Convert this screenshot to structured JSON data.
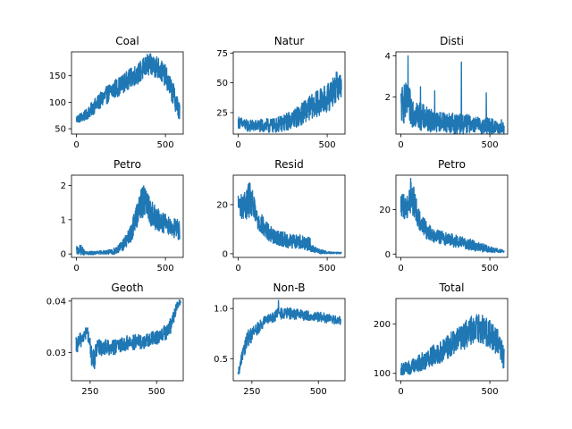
{
  "chart_data": [
    {
      "type": "line",
      "title": "Coal",
      "xlim": [
        -28,
        600
      ],
      "ylim": [
        40,
        195
      ],
      "xticks": [
        0,
        500
      ],
      "yticks": [
        50,
        100,
        150
      ],
      "series": [
        {
          "color": "#1f77b4",
          "x": [
            0,
            50,
            100,
            150,
            200,
            250,
            300,
            350,
            400,
            450,
            500,
            550,
            580
          ],
          "y": [
            68,
            75,
            92,
            108,
            122,
            132,
            145,
            155,
            170,
            168,
            150,
            110,
            80
          ],
          "noise": [
            8,
            10,
            14,
            16,
            18,
            18,
            18,
            20,
            22,
            22,
            20,
            22,
            18
          ]
        }
      ]
    },
    {
      "type": "line",
      "title": "Natur",
      "xlim": [
        -28,
        600
      ],
      "ylim": [
        7,
        76
      ],
      "xticks": [
        0,
        500
      ],
      "yticks": [
        25,
        50,
        75
      ],
      "series": [
        {
          "color": "#1f77b4",
          "x": [
            0,
            50,
            100,
            150,
            200,
            250,
            300,
            350,
            400,
            450,
            500,
            550,
            580
          ],
          "y": [
            17,
            14,
            14,
            14,
            14,
            16,
            19,
            23,
            29,
            33,
            37,
            46,
            50
          ],
          "noise": [
            5,
            5,
            5,
            6,
            6,
            7,
            8,
            9,
            10,
            11,
            12,
            13,
            14
          ]
        }
      ]
    },
    {
      "type": "line",
      "title": "Disti",
      "xlim": [
        -28,
        600
      ],
      "ylim": [
        0.2,
        4.2
      ],
      "xticks": [
        0,
        500
      ],
      "yticks": [
        2,
        4
      ],
      "series": [
        {
          "color": "#1f77b4",
          "x": [
            0,
            25,
            50,
            100,
            150,
            200,
            250,
            300,
            350,
            400,
            450,
            500,
            550,
            580
          ],
          "y": [
            1.6,
            1.7,
            1.5,
            1.1,
            0.9,
            0.8,
            0.8,
            0.7,
            0.7,
            0.7,
            0.6,
            0.6,
            0.5,
            0.5
          ],
          "noise": [
            0.9,
            1.0,
            0.9,
            0.7,
            0.6,
            0.5,
            0.5,
            0.5,
            0.5,
            0.4,
            0.4,
            0.4,
            0.3,
            0.3
          ],
          "spikes": [
            [
              40,
              4.0
            ],
            [
              110,
              2.5
            ],
            [
              190,
              2.3
            ],
            [
              340,
              3.7
            ],
            [
              480,
              2.2
            ],
            [
              565,
              0.9
            ]
          ]
        }
      ]
    },
    {
      "type": "line",
      "title": "Petro",
      "xlim": [
        -28,
        600
      ],
      "ylim": [
        -0.1,
        2.3
      ],
      "xticks": [
        0,
        500
      ],
      "yticks": [
        0,
        1,
        2
      ],
      "series": [
        {
          "color": "#1f77b4",
          "x": [
            0,
            25,
            50,
            100,
            150,
            200,
            250,
            300,
            350,
            380,
            400,
            450,
            500,
            550,
            580
          ],
          "y": [
            0.1,
            0.12,
            0.02,
            0.03,
            0.05,
            0.05,
            0.2,
            0.5,
            1.3,
            1.6,
            1.35,
            1.0,
            0.9,
            0.75,
            0.7
          ],
          "noise": [
            0.12,
            0.15,
            0.05,
            0.05,
            0.05,
            0.08,
            0.15,
            0.25,
            0.4,
            0.5,
            0.45,
            0.35,
            0.3,
            0.3,
            0.3
          ]
        }
      ]
    },
    {
      "type": "line",
      "title": "Resid",
      "xlim": [
        -28,
        600
      ],
      "ylim": [
        -1.5,
        32
      ],
      "xticks": [
        0,
        500
      ],
      "yticks": [
        0,
        20
      ],
      "series": [
        {
          "color": "#1f77b4",
          "x": [
            0,
            30,
            60,
            80,
            100,
            150,
            200,
            250,
            300,
            350,
            400,
            420,
            450,
            500,
            550,
            580
          ],
          "y": [
            20,
            19,
            22,
            20,
            15,
            10,
            7,
            6,
            5,
            5,
            4,
            2,
            1,
            0.5,
            0.3,
            0.3
          ],
          "noise": [
            5,
            5,
            8,
            6,
            5,
            4,
            3,
            3,
            3,
            3,
            3,
            1.5,
            1,
            0.5,
            0.3,
            0.3
          ]
        }
      ]
    },
    {
      "type": "line",
      "title": "Petro",
      "xlim": [
        -28,
        600
      ],
      "ylim": [
        -1.5,
        35.5
      ],
      "xticks": [
        0,
        500
      ],
      "yticks": [
        0,
        20
      ],
      "series": [
        {
          "color": "#1f77b4",
          "x": [
            0,
            30,
            60,
            80,
            100,
            150,
            200,
            250,
            300,
            350,
            400,
            450,
            500,
            550,
            580
          ],
          "y": [
            22,
            21,
            26,
            22,
            16,
            10,
            8,
            7,
            6,
            5,
            4,
            3,
            2,
            1.5,
            1.2
          ],
          "noise": [
            5,
            6,
            8,
            6,
            5,
            4,
            3,
            3,
            3,
            2.5,
            2.5,
            2,
            1.5,
            0.8,
            0.5
          ],
          "spikes": [
            [
              55,
              34
            ]
          ]
        }
      ]
    },
    {
      "type": "step",
      "title": "Geoth",
      "xlim": [
        180,
        600
      ],
      "ylim": [
        0.0245,
        0.0405
      ],
      "xticks": [
        250,
        500
      ],
      "yticks": [
        0.03,
        0.04
      ],
      "ytickfmt": "3",
      "series": [
        {
          "color": "#1f77b4",
          "x": [
            196,
            220,
            240,
            260,
            280,
            300,
            350,
            400,
            450,
            500,
            540,
            560,
            575,
            590
          ],
          "y": [
            0.031,
            0.033,
            0.034,
            0.028,
            0.031,
            0.031,
            0.031,
            0.032,
            0.032,
            0.033,
            0.034,
            0.036,
            0.039,
            0.04
          ],
          "noise": [
            0.0018,
            0.0015,
            0.0012,
            0.0025,
            0.0018,
            0.0015,
            0.0015,
            0.0015,
            0.0015,
            0.0015,
            0.0015,
            0.0015,
            0.0008,
            0.0005
          ]
        }
      ]
    },
    {
      "type": "line",
      "title": "Non-B",
      "xlim": [
        180,
        600
      ],
      "ylim": [
        0.28,
        1.1
      ],
      "xticks": [
        250,
        500
      ],
      "yticks": [
        0.5,
        1.0
      ],
      "ytickfmt": "1",
      "series": [
        {
          "color": "#1f77b4",
          "x": [
            196,
            205,
            215,
            230,
            250,
            280,
            300,
            320,
            350,
            400,
            450,
            500,
            550,
            585
          ],
          "y": [
            0.33,
            0.4,
            0.58,
            0.68,
            0.75,
            0.82,
            0.88,
            0.9,
            0.95,
            0.95,
            0.93,
            0.92,
            0.89,
            0.88
          ],
          "noise": [
            0.03,
            0.06,
            0.1,
            0.1,
            0.08,
            0.06,
            0.05,
            0.05,
            0.06,
            0.06,
            0.05,
            0.05,
            0.05,
            0.04
          ],
          "spikes": [
            [
              350,
              1.08
            ]
          ]
        }
      ]
    },
    {
      "type": "line",
      "title": "Total",
      "xlim": [
        -28,
        600
      ],
      "ylim": [
        85,
        252
      ],
      "xticks": [
        0,
        500
      ],
      "yticks": [
        100,
        200
      ],
      "series": [
        {
          "color": "#1f77b4",
          "x": [
            0,
            50,
            100,
            150,
            200,
            250,
            300,
            350,
            400,
            450,
            500,
            550,
            580
          ],
          "y": [
            108,
            112,
            120,
            130,
            140,
            150,
            165,
            175,
            190,
            190,
            180,
            160,
            130
          ],
          "noise": [
            12,
            14,
            18,
            20,
            22,
            24,
            26,
            28,
            30,
            30,
            28,
            26,
            24
          ]
        }
      ]
    }
  ]
}
